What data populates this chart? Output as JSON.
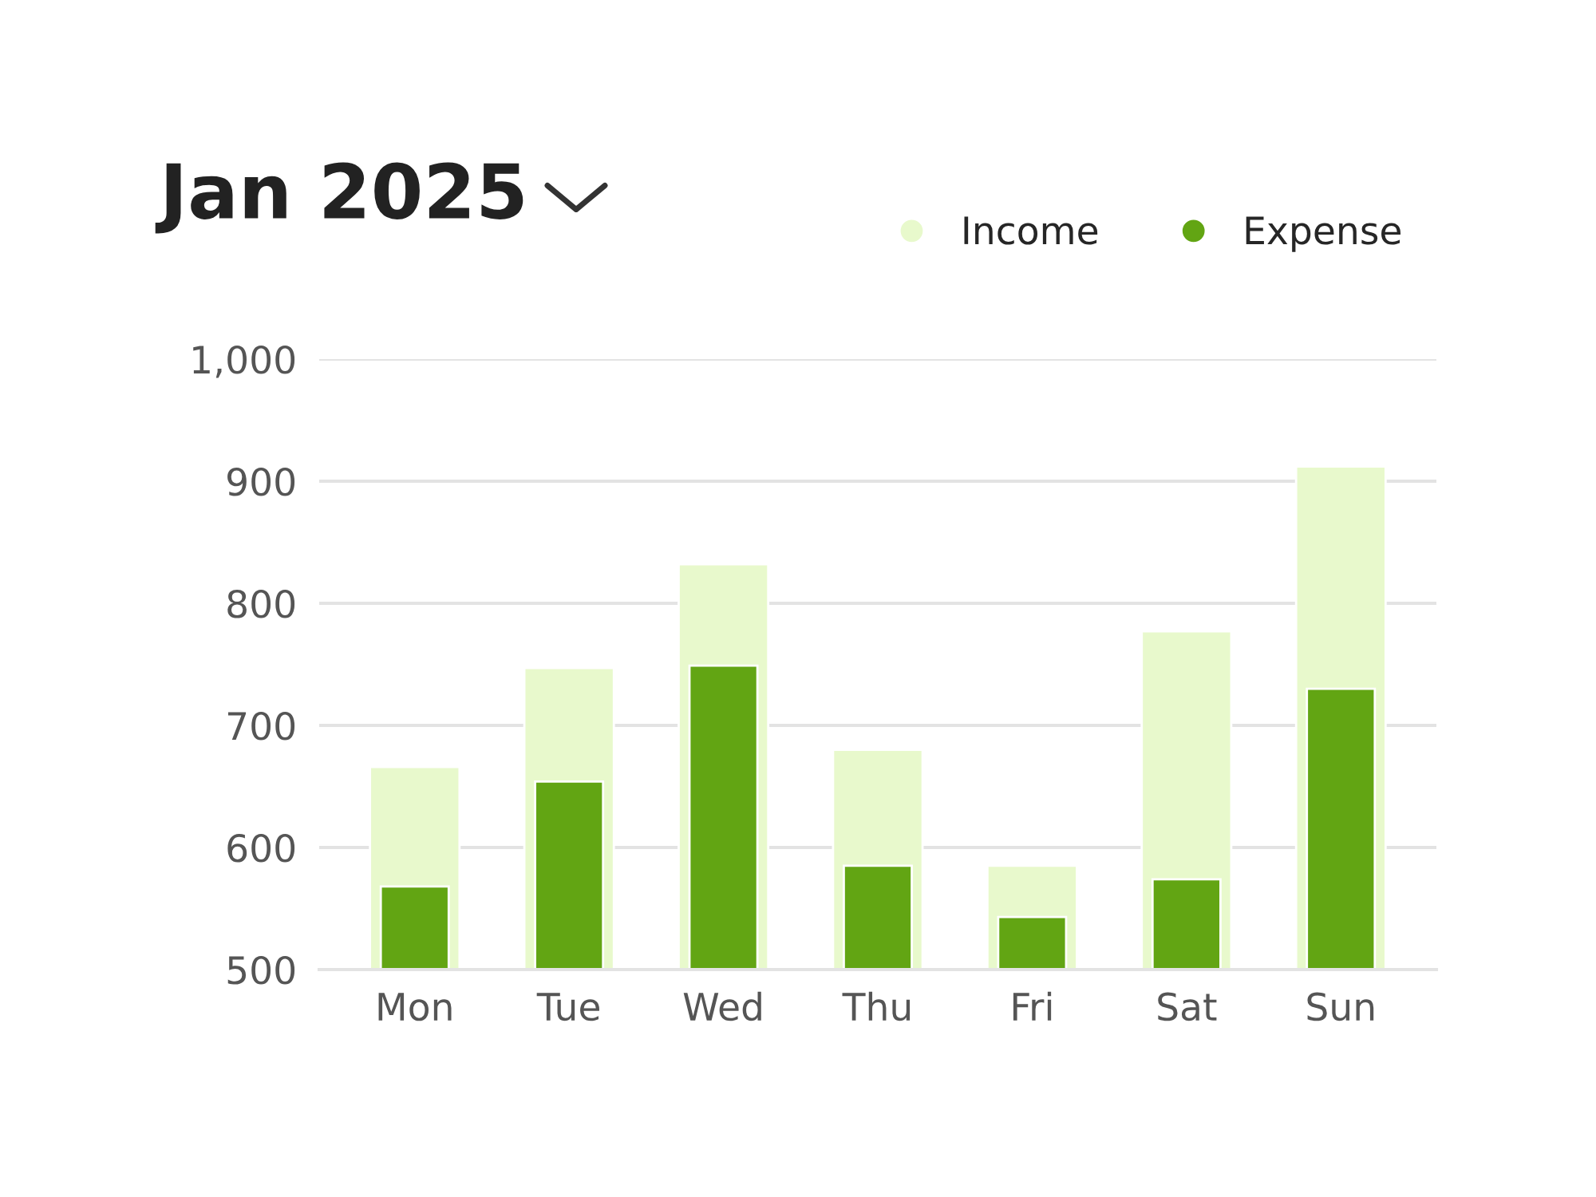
{
  "chart_data": {
    "type": "bar",
    "title": "Jan 2025",
    "categories": [
      "Mon",
      "Tue",
      "Wed",
      "Thu",
      "Fri",
      "Sat",
      "Sun"
    ],
    "series": [
      {
        "name": "Income",
        "color": "#e8f9cc",
        "values": [
          666,
          747,
          832,
          680,
          585,
          777,
          912
        ]
      },
      {
        "name": "Expense",
        "color": "#62a513",
        "values": [
          568,
          654,
          749,
          585,
          543,
          574,
          730
        ]
      }
    ],
    "ylim": [
      500,
      1000
    ],
    "yticks": [
      500,
      600,
      700,
      800,
      900,
      {
        "value": 1000,
        "label": "1,000"
      }
    ],
    "grid": "y",
    "legend": "top right"
  }
}
